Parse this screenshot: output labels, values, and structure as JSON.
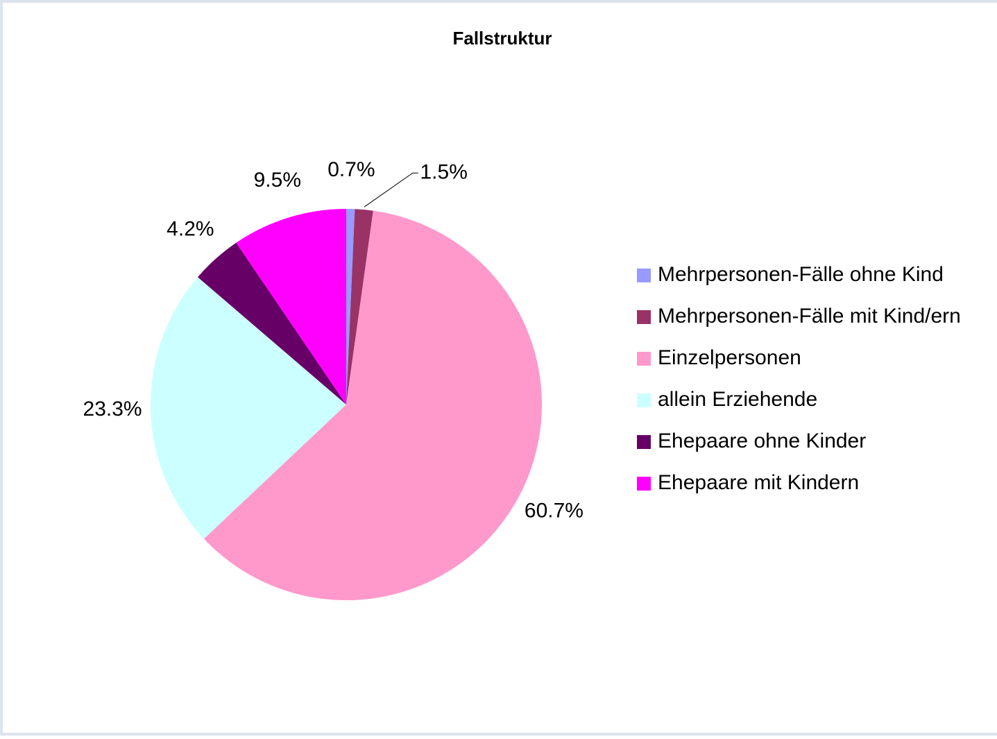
{
  "chart_data": {
    "type": "pie",
    "title": "Fallstruktur",
    "categories": [
      "Mehrpersonen-Fälle ohne Kind",
      "Mehrpersonen-Fälle mit Kind/ern",
      "Einzelpersonen",
      "allein Erziehende",
      "Ehepaare ohne Kinder",
      "Ehepaare mit Kindern"
    ],
    "values": [
      0.7,
      1.5,
      60.7,
      23.3,
      4.2,
      9.5
    ],
    "value_labels": [
      "0.7%",
      "1.5%",
      "60.7%",
      "23.3%",
      "4.2%",
      "9.5%"
    ],
    "colors": [
      "#9999ff",
      "#993366",
      "#ff99cc",
      "#ccffff",
      "#660066",
      "#ff00ff"
    ],
    "legend": "right"
  }
}
